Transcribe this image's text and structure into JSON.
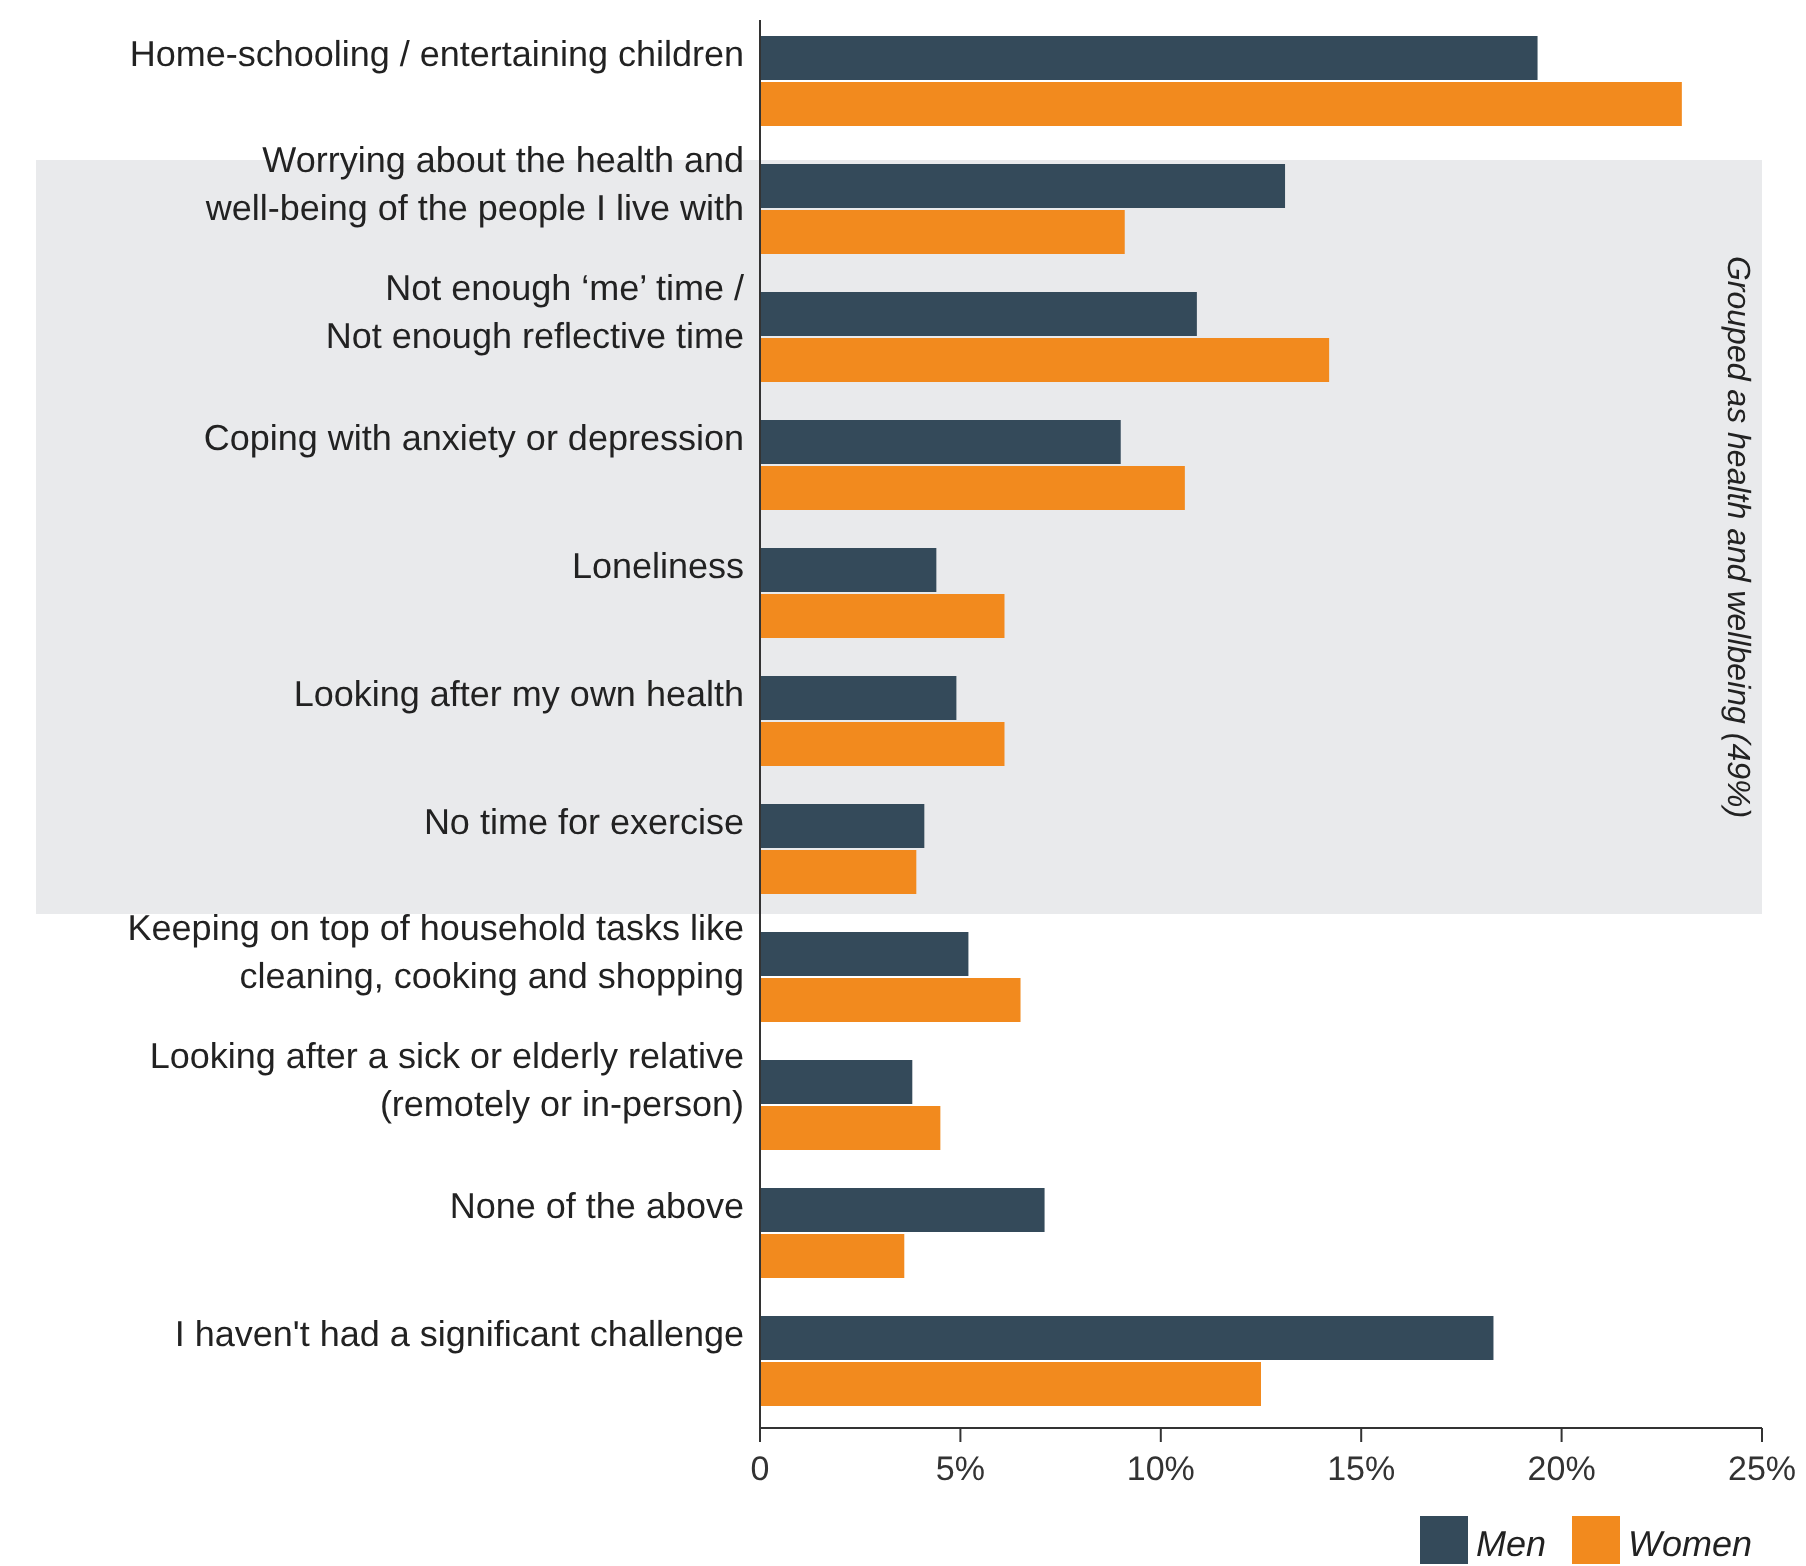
{
  "chart_data": {
    "type": "bar",
    "orientation": "horizontal",
    "categories": [
      "Home-schooling / entertaining children",
      "Worrying about the health and\nwell-being of the people I live with",
      "Not enough ‘me’ time /\nNot enough reflective time",
      "Coping with anxiety or depression",
      "Loneliness",
      "Looking after my own health",
      "No time for exercise",
      "Keeping on top of household tasks like\ncleaning, cooking and shopping",
      "Looking after a sick or elderly relative\n(remotely or in-person)",
      "None of the above",
      "I haven't had a significant challenge"
    ],
    "series": [
      {
        "name": "Men",
        "color": "#344a5a",
        "values": [
          19.4,
          13.1,
          10.9,
          9.0,
          4.4,
          4.9,
          4.1,
          5.2,
          3.8,
          7.1,
          18.3
        ]
      },
      {
        "name": "Women",
        "color": "#f28a1e",
        "values": [
          23.0,
          9.1,
          14.2,
          10.6,
          6.1,
          6.1,
          3.9,
          6.5,
          4.5,
          3.6,
          12.5
        ]
      }
    ],
    "xlim": [
      0,
      25
    ],
    "xticks": [
      {
        "value": 0,
        "label": "0"
      },
      {
        "value": 5,
        "label": "5%"
      },
      {
        "value": 10,
        "label": "10%"
      },
      {
        "value": 15,
        "label": "15%"
      },
      {
        "value": 20,
        "label": "20%"
      },
      {
        "value": 25,
        "label": "25%"
      }
    ],
    "bands": [
      {
        "axis": "y",
        "from": "Worrying about the health and\nwell-being of the people I live with",
        "to": "No time for exercise",
        "label": "Grouped as health and wellbeing (49%)",
        "color": "#e9eaec"
      }
    ],
    "grid": false,
    "legend": "bottom right"
  }
}
